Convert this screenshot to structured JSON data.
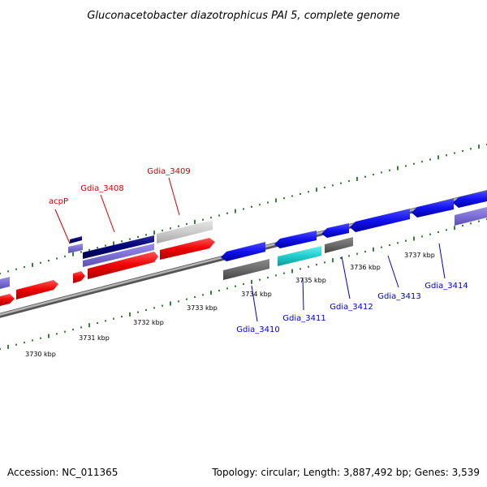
{
  "title": "Gluconacetobacter diazotrophicus PAI 5, complete genome",
  "footer": {
    "accession": "Accession: NC_011365",
    "info": "Topology: circular; Length: 3,887,492 bp; Genes: 3,539"
  },
  "colors": {
    "backbone": "#888888",
    "ruler_ticks": "#006600",
    "label_forward": "#cc0000",
    "label_reverse": "#0000cc"
  },
  "kbp_labels": [
    "3730 kbp",
    "3731 kbp",
    "3732 kbp",
    "3733 kbp",
    "3734 kbp",
    "3735 kbp",
    "3736 kbp",
    "3737 kbp"
  ],
  "gene_labels": {
    "forward": [
      "acpP",
      "Gdia_3408",
      "Gdia_3409"
    ],
    "reverse": [
      "Gdia_3410",
      "Gdia_3411",
      "Gdia_3412",
      "Gdia_3413",
      "Gdia_3414"
    ]
  }
}
